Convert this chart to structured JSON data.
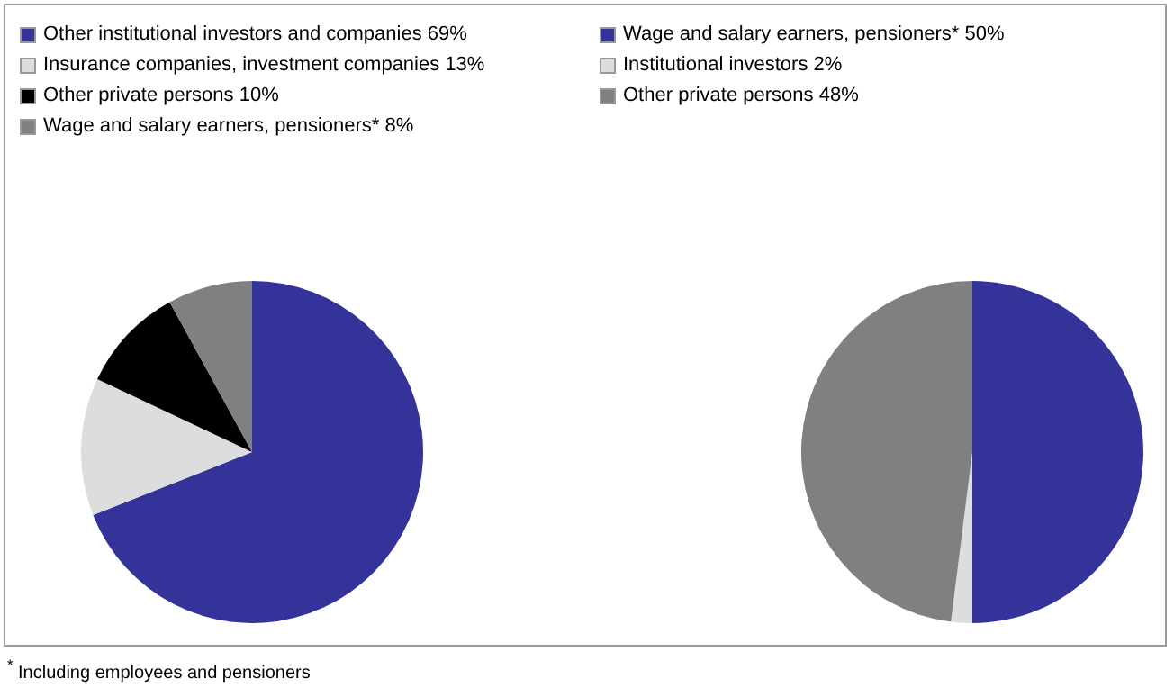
{
  "chart_data": [
    {
      "type": "pie",
      "categories": [
        "Other institutional investors and companies",
        "Insurance companies, investment companies",
        "Other private persons",
        "Wage and salary earners, pensioners*"
      ],
      "values": [
        69,
        13,
        10,
        8
      ],
      "value_labels": [
        "69%",
        "13%",
        "10%",
        "8%"
      ],
      "colors": [
        "#333399",
        "#dddddd",
        "#000000",
        "#808080"
      ],
      "legend": "top left",
      "annotations": [
        "$^{*}$ Including employees and pensioners"
      ]
    },
    {
      "type": "pie",
      "categories": [
        "Wage and salary earners, pensioners*",
        "Institutional investors",
        "Other private persons"
      ],
      "values": [
        50,
        2,
        48
      ],
      "value_labels": [
        "50%",
        "2%",
        "48%"
      ],
      "colors": [
        "#333399",
        "#dddddd",
        "#808080"
      ],
      "legend": "top left"
    }
  ]
}
